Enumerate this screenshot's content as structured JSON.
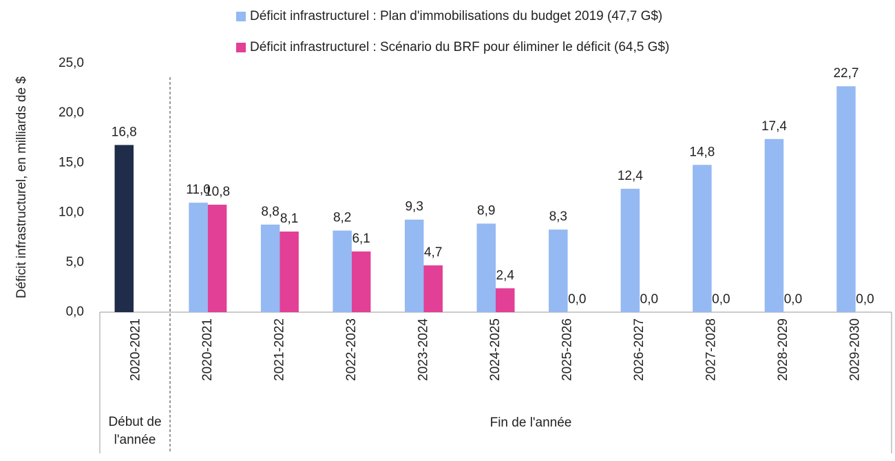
{
  "chart_data": {
    "type": "bar",
    "y_axis_label": "Déficit infrastructurel, en milliards de $",
    "categories": [
      "2020-2021",
      "2020-2021",
      "2021-2022",
      "2022-2023",
      "2023-2024",
      "2024-2025",
      "2025-2026",
      "2026-2027",
      "2027-2028",
      "2028-2029",
      "2029-2030"
    ],
    "start_bar": {
      "value": 16.8,
      "value_label": "16,8",
      "color": "#1f2d4a"
    },
    "series": [
      {
        "name": "Déficit infrastructurel : Plan d'immobilisations du budget 2019 (47,7 G$)",
        "color": "#94b9f3",
        "values": [
          null,
          11.0,
          8.8,
          8.2,
          9.3,
          8.9,
          8.3,
          12.4,
          14.8,
          17.4,
          22.7
        ],
        "value_labels": [
          null,
          "11,0",
          "8,8",
          "8,2",
          "9,3",
          "8,9",
          "8,3",
          "12,4",
          "14,8",
          "17,4",
          "22,7"
        ]
      },
      {
        "name": "Déficit infrastructurel : Scénario du BRF pour éliminer le déficit (64,5 G$)",
        "color": "#e23f96",
        "values": [
          null,
          10.8,
          8.1,
          6.1,
          4.7,
          2.4,
          0.0,
          0.0,
          0.0,
          0.0,
          0.0
        ],
        "value_labels": [
          null,
          "10,8",
          "8,1",
          "6,1",
          "4,7",
          "2,4",
          "0,0",
          "0,0",
          "0,0",
          "0,0",
          "0,0"
        ]
      }
    ],
    "groups": [
      "Début de l'année",
      "Fin de l'année"
    ],
    "ylim": [
      0,
      25
    ],
    "yticks": [
      {
        "value": 0,
        "label": "0,0"
      },
      {
        "value": 5,
        "label": "5,0"
      },
      {
        "value": 10,
        "label": "10,0"
      },
      {
        "value": 15,
        "label": "15,0"
      },
      {
        "value": 20,
        "label": "20,0"
      },
      {
        "value": 25,
        "label": "25,0"
      }
    ]
  }
}
